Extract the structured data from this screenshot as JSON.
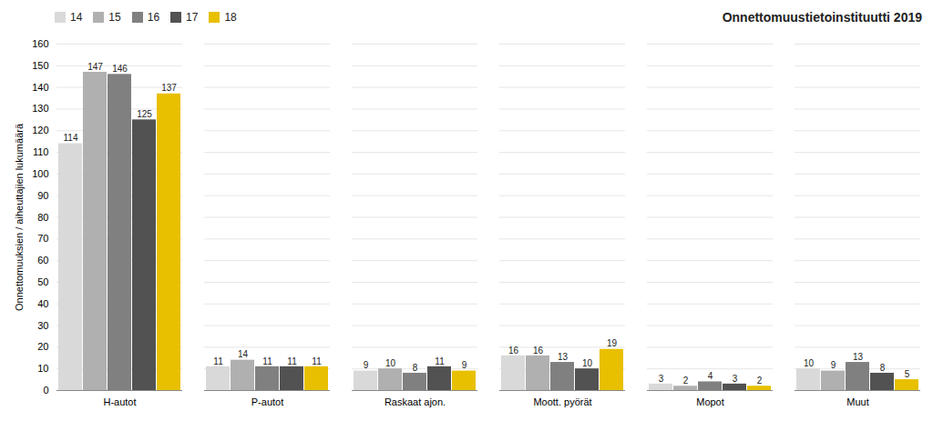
{
  "chart_data": {
    "type": "bar",
    "title": "Onnettomuustietoinstituutti 2019",
    "categories": [
      "H-autot",
      "P-autot",
      "Raskaat ajon.",
      "Moott. pyörät",
      "Mopot",
      "Muut"
    ],
    "series": [
      {
        "name": "14",
        "color": "#d9d9d9",
        "values": [
          114,
          11,
          9,
          16,
          3,
          10
        ]
      },
      {
        "name": "15",
        "color": "#b0b0b0",
        "values": [
          147,
          14,
          10,
          16,
          2,
          9
        ]
      },
      {
        "name": "16",
        "color": "#808080",
        "values": [
          146,
          11,
          8,
          13,
          4,
          13
        ]
      },
      {
        "name": "17",
        "color": "#525252",
        "values": [
          125,
          11,
          11,
          10,
          3,
          8
        ]
      },
      {
        "name": "18",
        "color": "#e8c000",
        "values": [
          137,
          11,
          9,
          19,
          2,
          5
        ]
      }
    ],
    "ylabel": "Onnettomuuksien / aiheuttajien lukumäärä",
    "ylim": [
      0,
      160
    ],
    "yticks": [
      0,
      10,
      20,
      30,
      40,
      50,
      60,
      70,
      80,
      90,
      100,
      110,
      120,
      130,
      140,
      150,
      160
    ],
    "grid": true,
    "legend": "upper left",
    "data_labels": true
  }
}
